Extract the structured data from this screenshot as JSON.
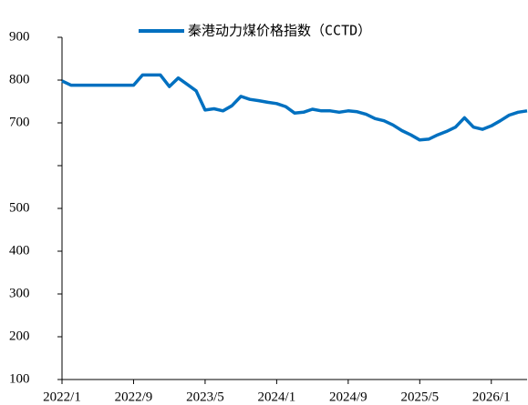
{
  "chart_data": {
    "type": "line",
    "legend": "top",
    "series": [
      {
        "name": "秦港动力煤价格指数（CCTD）",
        "color": "#0070c0",
        "values": [
          798,
          788,
          788,
          788,
          788,
          788,
          788,
          788,
          788,
          812,
          812,
          812,
          785,
          805,
          790,
          775,
          730,
          733,
          728,
          740,
          762,
          755,
          752,
          748,
          745,
          738,
          723,
          725,
          732,
          728,
          728,
          725,
          728,
          726,
          720,
          710,
          705,
          695,
          682,
          672,
          660,
          662,
          672,
          680,
          690,
          712,
          690,
          685,
          693,
          705,
          718,
          725,
          728
        ]
      }
    ],
    "x": [
      "2022/1",
      "2022/2",
      "2022/3",
      "2022/4",
      "2022/5",
      "2022/6",
      "2022/7",
      "2022/8",
      "2022/9",
      "2022/10",
      "2022/11",
      "2022/12",
      "2023/1",
      "2023/2",
      "2023/3",
      "2023/4",
      "2023/5",
      "2023/6",
      "2023/7",
      "2023/8",
      "2023/9",
      "2023/10",
      "2023/11",
      "2023/12",
      "2024/1",
      "2024/2",
      "2024/3",
      "2024/4",
      "2024/5",
      "2024/6",
      "2024/7",
      "2024/8",
      "2024/9",
      "2024/10",
      "2024/11",
      "2024/12",
      "2025/1",
      "2025/2",
      "2025/3",
      "2025/4",
      "2025/5",
      "2025/6",
      "2025/7",
      "2025/8",
      "2025/9",
      "2025/10",
      "2025/11",
      "2025/12",
      "2026/1",
      "2026/2",
      "2026/3",
      "2026/4",
      "2026/5"
    ],
    "xlim": [
      "2022/1",
      "2026/5"
    ],
    "xticks": [
      "2022/1",
      "2022/9",
      "2023/5",
      "2024/1",
      "2024/9",
      "2025/5",
      "2026/1"
    ],
    "ylim": [
      100,
      900
    ],
    "yticks": [
      100,
      200,
      300,
      400,
      500,
      {
        "value": 600,
        "label": null
      },
      700,
      800,
      900
    ]
  }
}
